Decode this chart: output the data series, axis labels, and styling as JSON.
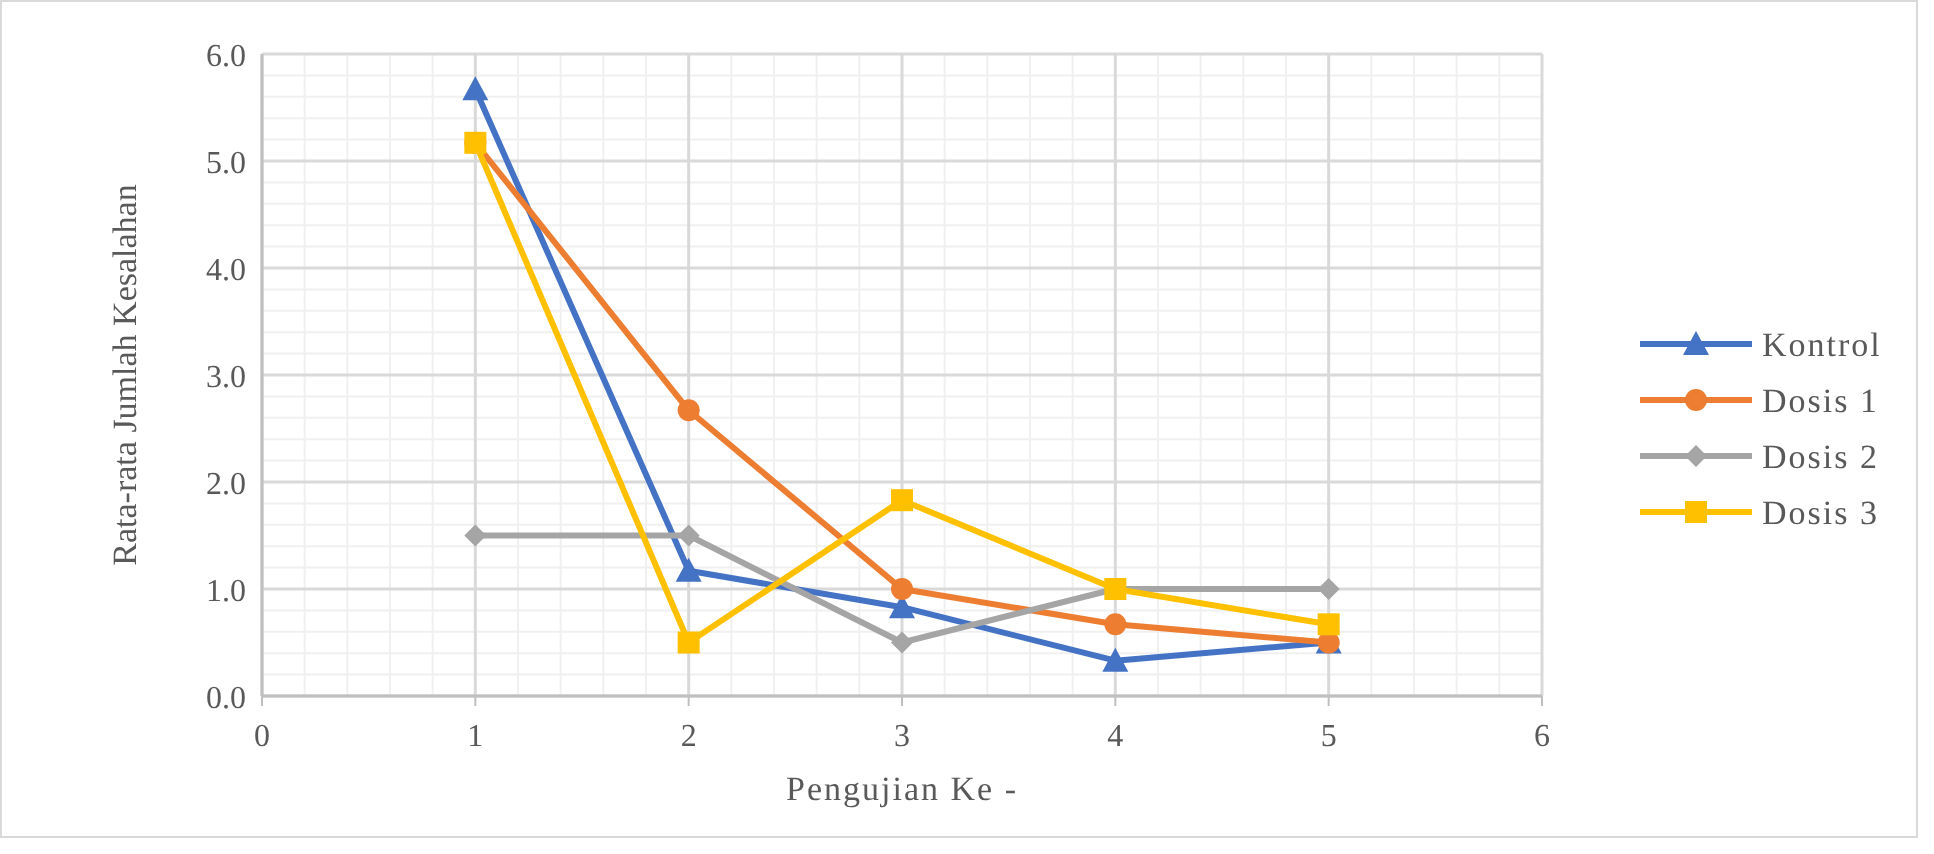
{
  "chart_data": {
    "type": "line",
    "xlabel": "Pengujian Ke -",
    "ylabel": "Rata-rata Jumlah Kesalahan",
    "x": [
      1,
      2,
      3,
      4,
      5
    ],
    "xlim": [
      0,
      6
    ],
    "xticks": [
      0,
      1,
      2,
      3,
      4,
      5,
      6
    ],
    "ylim": [
      0,
      6
    ],
    "yticks": [
      {
        "value": 0,
        "label": "0.0"
      },
      {
        "value": 1,
        "label": "1.0"
      },
      {
        "value": 2,
        "label": "2.0"
      },
      {
        "value": 3,
        "label": "3.0"
      },
      {
        "value": 4,
        "label": "4.0"
      },
      {
        "value": 5,
        "label": "5.0"
      },
      {
        "value": 6,
        "label": "6.0"
      }
    ],
    "grid": true,
    "legend": "right",
    "line_style": "solid",
    "series": [
      {
        "name": "Kontrol",
        "color": "#4472c4",
        "marker": "triangle",
        "values": [
          5.67,
          1.17,
          0.83,
          0.33,
          0.5
        ]
      },
      {
        "name": "Dosis 1",
        "color": "#ed7d31",
        "marker": "circle",
        "values": [
          5.17,
          2.67,
          1.0,
          0.67,
          0.5
        ]
      },
      {
        "name": "Dosis 2",
        "color": "#a5a5a5",
        "marker": "diamond",
        "values": [
          1.5,
          1.5,
          0.5,
          1.0,
          1.0
        ]
      },
      {
        "name": "Dosis 3",
        "color": "#ffc000",
        "marker": "square",
        "values": [
          5.17,
          0.5,
          1.83,
          1.0,
          0.67
        ]
      }
    ]
  }
}
